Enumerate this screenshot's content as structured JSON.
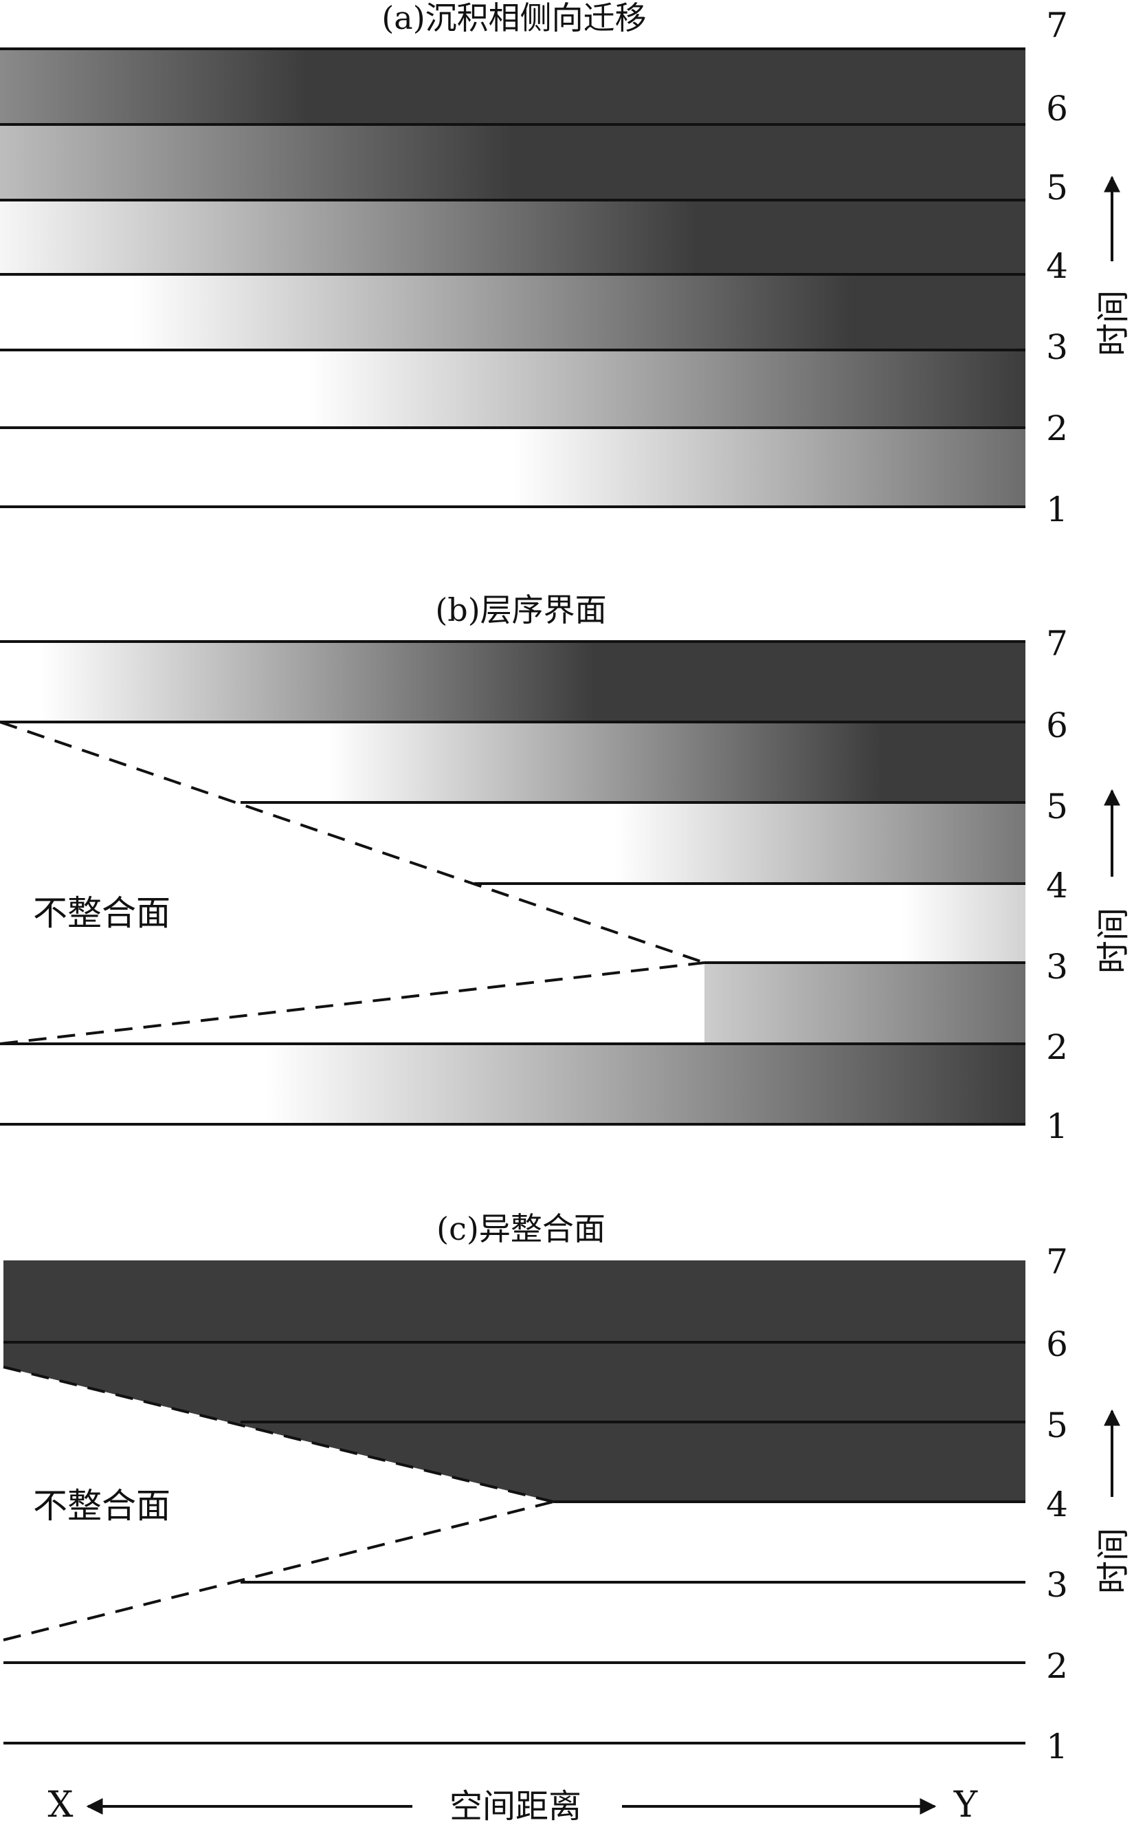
{
  "figure": {
    "panels": [
      {
        "id": "a",
        "title": "(a)沉积相侧向迁移",
        "layer_labels": [
          "1",
          "2",
          "3",
          "4",
          "5",
          "6",
          "7"
        ],
        "time_axis_label": "时间"
      },
      {
        "id": "b",
        "title": "(b)层序界面",
        "layer_labels": [
          "1",
          "2",
          "3",
          "4",
          "5",
          "6",
          "7"
        ],
        "time_axis_label": "时间",
        "annotation": "不整合面"
      },
      {
        "id": "c",
        "title": "(c)异整合面",
        "layer_labels": [
          "1",
          "2",
          "3",
          "4",
          "5",
          "6",
          "7"
        ],
        "time_axis_label": "时间",
        "annotation": "不整合面"
      }
    ],
    "space_axis": {
      "label": "空间距离",
      "left_end": "X",
      "right_end": "Y"
    },
    "colors": {
      "background": "#ffffff",
      "dark_facies": "#3c3c3c",
      "line": "#111111"
    }
  }
}
